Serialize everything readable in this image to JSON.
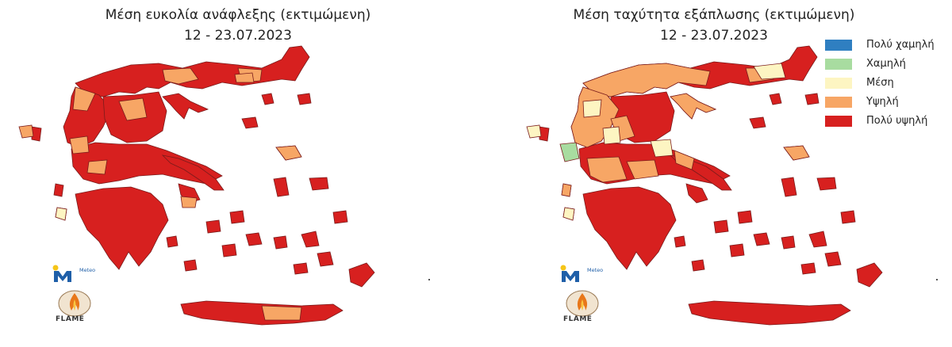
{
  "colors": {
    "very_low": "#2f7fc1",
    "low": "#a8dca0",
    "medium": "#fdf5c2",
    "high": "#f7a665",
    "very_high": "#d7201f"
  },
  "left_panel": {
    "title_line1": "Μέση ευκολία ανάφλεξης (εκτιμώμενη)",
    "title_line2": "12 - 23.07.2023"
  },
  "right_panel": {
    "title_line1": "Μέση ταχύτητα εξάπλωσης (εκτιμώμενη)",
    "title_line2": "12 - 23.07.2023"
  },
  "legend": [
    {
      "label": "Πολύ χαμηλή",
      "color": "#2f7fc1"
    },
    {
      "label": "Χαμηλή",
      "color": "#a8dca0"
    },
    {
      "label": "Μέση",
      "color": "#fdf5c2"
    },
    {
      "label": "Υψηλή",
      "color": "#f7a665"
    },
    {
      "label": "Πολύ υψηλή",
      "color": "#d7201f"
    }
  ],
  "logos": {
    "meteo": "Meteo",
    "flame": "FLAME",
    "meteo_icon": "meteo-logo-icon",
    "flame_icon": "flame-logo-icon"
  }
}
